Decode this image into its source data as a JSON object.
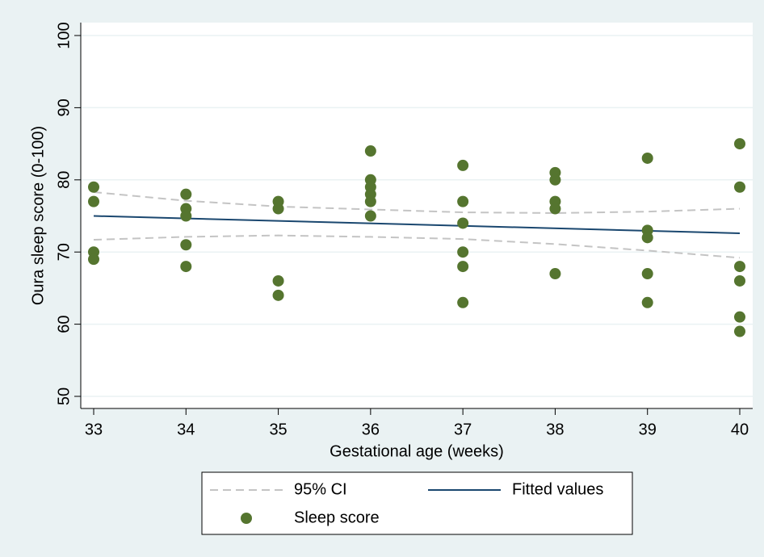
{
  "chart_data": {
    "type": "scatter",
    "x_label": "Gestational age (weeks)",
    "y_label": "Oura sleep score (0-100)",
    "xlim": [
      33,
      40
    ],
    "ylim": [
      50,
      100
    ],
    "xticks": [
      33,
      34,
      35,
      36,
      37,
      38,
      39,
      40
    ],
    "yticks": [
      50,
      60,
      70,
      80,
      90,
      100
    ],
    "grid": true,
    "legend": "bottom",
    "series": [
      {
        "name": "95% CI",
        "type": "band",
        "color": "#c4c4c4",
        "dashed": true,
        "x": [
          33,
          34,
          35,
          36,
          37,
          38,
          39,
          40
        ],
        "upper": [
          78.3,
          77.1,
          76.3,
          75.9,
          75.5,
          75.4,
          75.6,
          76.0
        ],
        "lower": [
          71.7,
          72.1,
          72.3,
          72.1,
          71.8,
          71.1,
          70.2,
          69.2
        ]
      },
      {
        "name": "Fitted values",
        "type": "line",
        "color": "#1a476f",
        "x": [
          33,
          40
        ],
        "values": [
          75,
          72.6
        ]
      },
      {
        "name": "Sleep score",
        "type": "scatter",
        "color": "#55752f",
        "x": [
          33,
          33,
          33,
          33,
          34,
          34,
          34,
          34,
          34,
          35,
          35,
          35,
          35,
          36,
          36,
          36,
          36,
          36,
          36,
          37,
          37,
          37,
          37,
          37,
          37,
          38,
          38,
          38,
          38,
          38,
          39,
          39,
          39,
          39,
          39,
          40,
          40,
          40,
          40,
          40,
          40
        ],
        "values": [
          79,
          77,
          70,
          69,
          78,
          76,
          75,
          71,
          68,
          77,
          76,
          66,
          64,
          84,
          80,
          79,
          78,
          77,
          75,
          82,
          77,
          74,
          70,
          68,
          63,
          81,
          80,
          77,
          76,
          67,
          83,
          73,
          72,
          67,
          63,
          85,
          79,
          68,
          66,
          61,
          59
        ]
      }
    ]
  }
}
